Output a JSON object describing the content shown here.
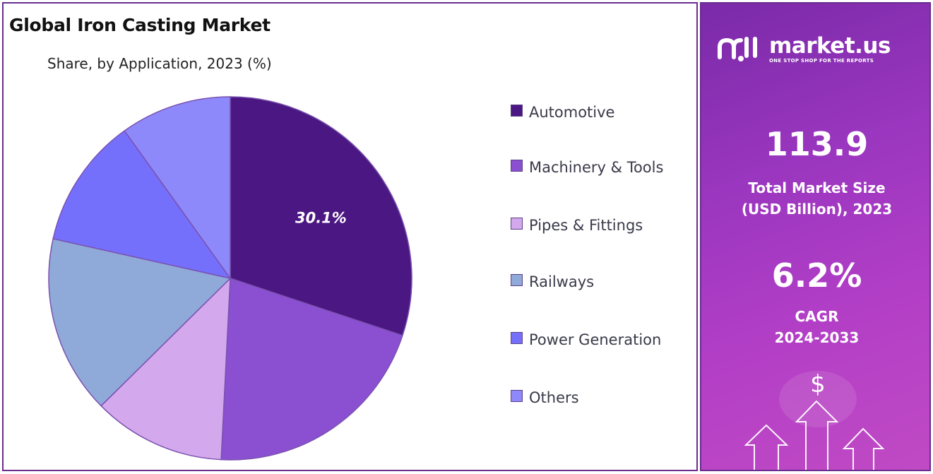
{
  "chart": {
    "title": "Global Iron Casting Market",
    "subtitle": "Share, by Application, 2023 (%)"
  },
  "chart_data": {
    "type": "pie",
    "title": "Global Iron Casting Market",
    "subtitle": "Share, by Application, 2023 (%)",
    "categories": [
      "Automotive",
      "Machinery & Tools",
      "Pipes & Fittings",
      "Railways",
      "Power Generation",
      "Others"
    ],
    "values": [
      30.1,
      20.7,
      11.8,
      15.9,
      11.6,
      9.9
    ],
    "colors": [
      "#4b1782",
      "#8b4fd1",
      "#d4a8ec",
      "#8fa9d9",
      "#7570fb",
      "#8d89fb"
    ],
    "data_labels": [
      {
        "category": "Automotive",
        "text": "30.1%"
      }
    ],
    "start_angle_deg": 0,
    "direction": "clockwise",
    "legend_position": "right"
  },
  "legend": {
    "items": [
      {
        "label": "Automotive",
        "color": "#4b1782"
      },
      {
        "label": "Machinery & Tools",
        "color": "#8b4fd1"
      },
      {
        "label": "Pipes & Fittings",
        "color": "#d4a8ec"
      },
      {
        "label": "Railways",
        "color": "#8fa9d9"
      },
      {
        "label": "Power Generation",
        "color": "#7570fb"
      },
      {
        "label": "Others",
        "color": "#8d89fb"
      }
    ]
  },
  "brand": {
    "name": "market.us",
    "tagline": "ONE STOP SHOP FOR THE REPORTS",
    "logo_icon": "market-us-logo-icon"
  },
  "stats": {
    "market_size_value": "113.9",
    "market_size_label_line1": "Total Market Size",
    "market_size_label_line2": "(USD Billion), 2023",
    "cagr_value": "6.2%",
    "cagr_label_line1": "CAGR",
    "cagr_label_line2": "2024-2033",
    "currency_symbol": "$"
  },
  "colors": {
    "frame": "#6b2d8f",
    "stats_gradient_start": "#7a2aa8",
    "stats_gradient_end": "#c04ac4",
    "label_text": "#ffffff"
  }
}
